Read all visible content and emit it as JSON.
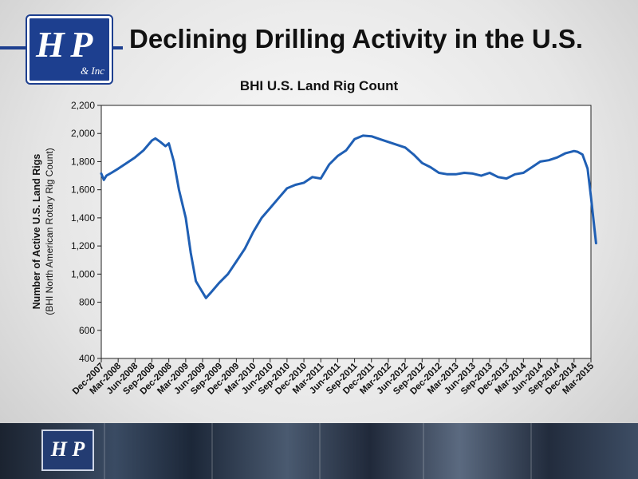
{
  "slide": {
    "title": "Declining Drilling Activity in the U.S.",
    "logo_text": "H P",
    "logo_subtext": "& Inc"
  },
  "chart_data": {
    "type": "line",
    "title": "BHI U.S. Land Rig Count",
    "ylabel": "Number of Active U.S. Land Rigs",
    "ylabel_sub": "(BHI North American Rotary Rig Count)",
    "xlabel": "",
    "ylim": [
      400,
      2200
    ],
    "yticks": [
      400,
      600,
      800,
      1000,
      1200,
      1400,
      1600,
      1800,
      2000,
      2200
    ],
    "ytick_labels": [
      "400",
      "600",
      "800",
      "1,000",
      "1,200",
      "1,400",
      "1,600",
      "1,800",
      "2,000",
      "2,200"
    ],
    "categories": [
      "Dec-2007",
      "Mar-2008",
      "Jun-2008",
      "Sep-2008",
      "Dec-2008",
      "Mar-2009",
      "Jun-2009",
      "Sep-2009",
      "Dec-2009",
      "Mar-2010",
      "Jun-2010",
      "Sep-2010",
      "Dec-2010",
      "Mar-2011",
      "Jun-2011",
      "Sep-2011",
      "Dec-2011",
      "Mar-2012",
      "Jun-2012",
      "Sep-2012",
      "Dec-2012",
      "Mar-2013",
      "Jun-2013",
      "Sep-2013",
      "Dec-2013",
      "Mar-2014",
      "Jun-2014",
      "Sep-2014",
      "Dec-2014",
      "Mar-2015"
    ],
    "grid": false,
    "legend": "none",
    "line_color": "#1f5fb4",
    "series": [
      {
        "x": [
          0,
          0.15,
          0.3,
          0.6,
          1,
          1.5,
          2,
          2.5,
          3,
          3.2,
          3.5,
          3.8,
          4,
          4.3,
          4.6,
          5,
          5.3,
          5.6,
          6,
          6.2,
          6.5,
          7,
          7.5,
          8,
          8.5,
          9,
          9.5,
          10,
          10.5,
          11,
          11.5,
          12,
          12.5,
          13,
          13.5,
          14,
          14.5,
          15,
          15.5,
          16,
          16.5,
          17,
          17.5,
          18,
          18.5,
          19,
          19.5,
          20,
          20.5,
          21,
          21.5,
          22,
          22.5,
          23,
          23.5,
          24,
          24.5,
          25,
          25.5,
          26,
          26.5,
          27,
          27.5,
          28,
          28.2,
          28.5,
          28.8,
          29,
          29.3
        ],
        "y": [
          1715,
          1670,
          1700,
          1720,
          1750,
          1790,
          1830,
          1880,
          1950,
          1965,
          1940,
          1910,
          1930,
          1800,
          1600,
          1400,
          1150,
          950,
          870,
          830,
          870,
          940,
          1000,
          1090,
          1180,
          1300,
          1400,
          1470,
          1540,
          1610,
          1635,
          1650,
          1690,
          1680,
          1780,
          1840,
          1880,
          1960,
          1985,
          1980,
          1960,
          1940,
          1920,
          1900,
          1850,
          1790,
          1760,
          1720,
          1710,
          1710,
          1720,
          1715,
          1700,
          1720,
          1690,
          1680,
          1710,
          1720,
          1760,
          1800,
          1810,
          1830,
          1860,
          1875,
          1870,
          1850,
          1750,
          1550,
          1220
        ]
      }
    ]
  }
}
